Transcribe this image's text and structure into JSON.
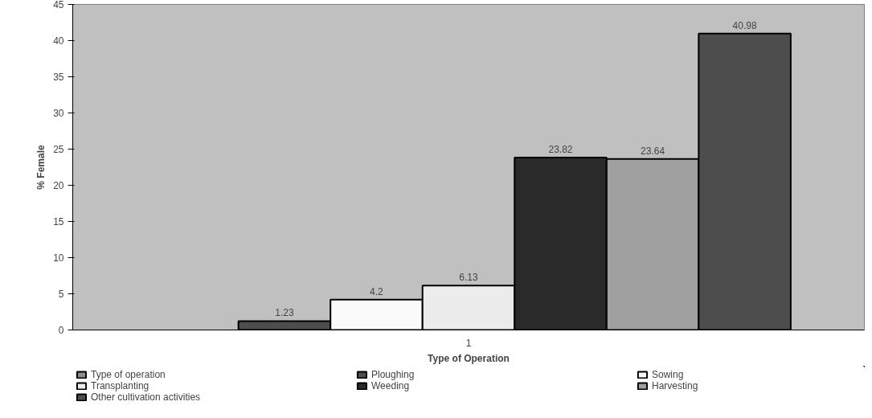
{
  "chart_data": {
    "type": "bar",
    "xlabel": "Type of Operation",
    "ylabel": "% Female",
    "categories": [
      "1"
    ],
    "series": [
      {
        "name": "Type of operation",
        "color": "#8c8c8c",
        "values": [
          null
        ]
      },
      {
        "name": "Ploughing",
        "color": "#4d4d4d",
        "values": [
          1.23
        ]
      },
      {
        "name": "Sowing",
        "color": "#fafafa",
        "values": [
          4.2
        ]
      },
      {
        "name": "Transplanting",
        "color": "#ececec",
        "values": [
          6.13
        ]
      },
      {
        "name": "Weeding",
        "color": "#2a2a2a",
        "values": [
          23.82
        ]
      },
      {
        "name": "Harvesting",
        "color": "#a0a0a0",
        "values": [
          23.64
        ]
      },
      {
        "name": "Other cultivation activities",
        "color": "#4d4d4d",
        "values": [
          40.98
        ]
      }
    ],
    "ylim": [
      0,
      45
    ],
    "yticks": [
      0,
      5,
      10,
      15,
      20,
      25,
      30,
      35,
      40,
      45
    ],
    "grid": false,
    "legend": "bottom",
    "data_labels": true
  }
}
